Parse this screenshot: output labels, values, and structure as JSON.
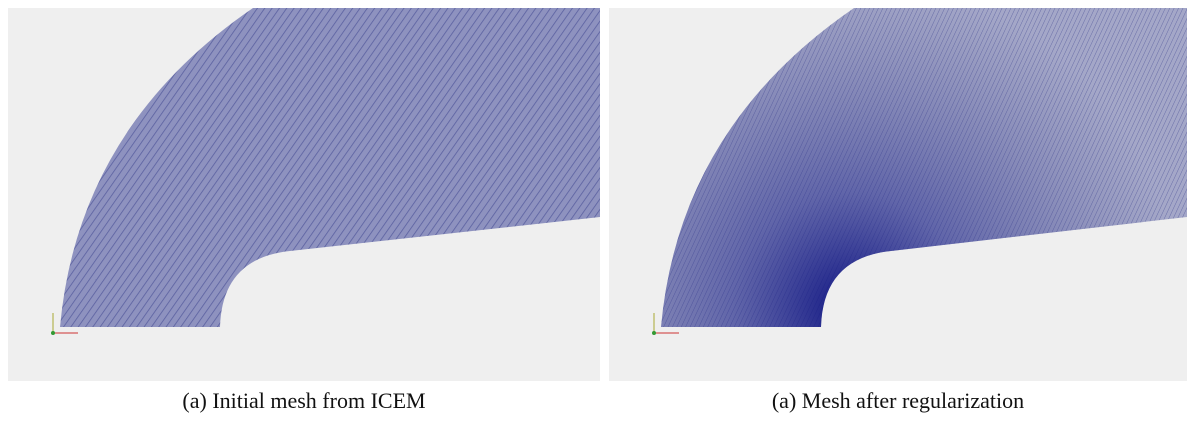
{
  "figures": [
    {
      "caption": "(a) Initial mesh from ICEM"
    },
    {
      "caption": "(a) Mesh after regularization"
    }
  ]
}
